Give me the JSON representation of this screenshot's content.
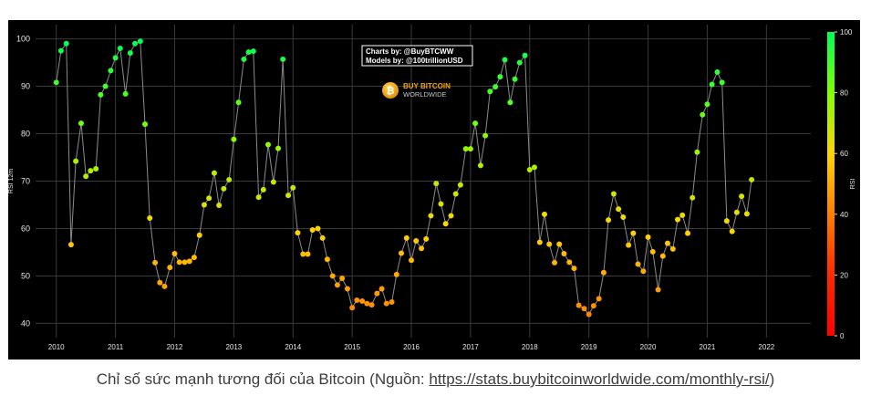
{
  "caption": {
    "text": "Chỉ số sức mạnh tương đối của Bitcoin (Nguồn: ",
    "link": "https://stats.buybitcoinworldwide.com/monthly-rsi/",
    "suffix": ")"
  },
  "credits": {
    "line1": "Charts by: @BuyBTCWW",
    "line2": "Models by: @100trillionUSD"
  },
  "logo": {
    "line1": "BUY BITCOIN",
    "line2": "WORLDWIDE",
    "glyph": "₿"
  },
  "chart_data": {
    "type": "line",
    "ylabel": "RSI 12m",
    "ylim": [
      37,
      103
    ],
    "xlim": [
      2009.65,
      2022.75
    ],
    "yticks": [
      40,
      50,
      60,
      70,
      80,
      90,
      100
    ],
    "xticks": [
      2010,
      2011,
      2012,
      2013,
      2014,
      2015,
      2016,
      2017,
      2018,
      2019,
      2020,
      2021,
      2022
    ],
    "colorbar": {
      "label": "RSI",
      "range": [
        0,
        100
      ],
      "ticks": [
        0,
        20,
        40,
        60,
        80,
        100
      ]
    },
    "grid": true,
    "legend": "none",
    "series": [
      {
        "x": [
          2010.0,
          2010.08,
          2010.17,
          2010.25,
          2010.33,
          2010.42,
          2010.5,
          2010.58,
          2010.67,
          2010.75,
          2010.83,
          2010.92,
          2011.0,
          2011.08,
          2011.17,
          2011.25,
          2011.33,
          2011.42,
          2011.5,
          2011.58,
          2011.67,
          2011.75,
          2011.83,
          2011.92,
          2012.0,
          2012.08,
          2012.17,
          2012.25,
          2012.33,
          2012.42,
          2012.5,
          2012.58,
          2012.67,
          2012.75,
          2012.83,
          2012.92,
          2013.0,
          2013.08,
          2013.17,
          2013.25,
          2013.33,
          2013.42,
          2013.5,
          2013.58,
          2013.67,
          2013.75,
          2013.83,
          2013.92,
          2014.0,
          2014.08,
          2014.17,
          2014.25,
          2014.33,
          2014.42,
          2014.5,
          2014.58,
          2014.67,
          2014.75,
          2014.83,
          2014.92,
          2015.0,
          2015.08,
          2015.17,
          2015.25,
          2015.33,
          2015.42,
          2015.5,
          2015.58,
          2015.67,
          2015.75,
          2015.83,
          2015.92,
          2016.0,
          2016.08,
          2016.17,
          2016.25,
          2016.33,
          2016.42,
          2016.5,
          2016.58,
          2016.67,
          2016.75,
          2016.83,
          2016.92,
          2017.0,
          2017.08,
          2017.17,
          2017.25,
          2017.33,
          2017.42,
          2017.5,
          2017.58,
          2017.67,
          2017.75,
          2017.83,
          2017.92,
          2018.0,
          2018.08,
          2018.17,
          2018.25,
          2018.33,
          2018.42,
          2018.5,
          2018.58,
          2018.67,
          2018.75,
          2018.83,
          2018.92,
          2019.0,
          2019.08,
          2019.17,
          2019.25,
          2019.33,
          2019.42,
          2019.5,
          2019.58,
          2019.67,
          2019.75,
          2019.83,
          2019.92,
          2020.0,
          2020.08,
          2020.17,
          2020.25,
          2020.33,
          2020.42,
          2020.5,
          2020.58,
          2020.67,
          2020.75,
          2020.83,
          2020.92,
          2021.0,
          2021.08,
          2021.17,
          2021.25,
          2021.33,
          2021.42,
          2021.5,
          2021.58,
          2021.67,
          2021.75
        ],
        "y": [
          90.8,
          97.5,
          99.0,
          56.6,
          74.2,
          82.2,
          71.0,
          72.2,
          72.6,
          88.2,
          90.0,
          93.3,
          96.0,
          98.0,
          88.4,
          97.0,
          99.0,
          99.5,
          82.0,
          62.2,
          52.8,
          48.6,
          47.8,
          51.8,
          54.7,
          52.9,
          52.9,
          53.1,
          53.9,
          58.6,
          65.0,
          66.4,
          71.7,
          64.9,
          68.4,
          70.3,
          78.8,
          86.6,
          95.7,
          97.2,
          97.4,
          66.6,
          68.2,
          77.7,
          69.8,
          76.9,
          95.7,
          67.0,
          68.6,
          59.1,
          54.6,
          54.6,
          59.7,
          60.0,
          58.0,
          53.5,
          50.0,
          48.1,
          49.5,
          47.3,
          43.3,
          44.9,
          44.7,
          44.2,
          43.9,
          46.3,
          47.3,
          44.2,
          44.5,
          50.3,
          54.8,
          58.0,
          53.3,
          57.4,
          55.8,
          57.8,
          62.7,
          69.5,
          65.2,
          61.0,
          62.7,
          67.3,
          69.2,
          76.8,
          76.8,
          82.2,
          73.3,
          79.6,
          88.9,
          89.9,
          92.0,
          95.6,
          86.6,
          91.5,
          95.0,
          96.5,
          72.4,
          72.9,
          57.1,
          63.0,
          56.7,
          52.8,
          56.7,
          54.7,
          52.9,
          51.6,
          43.8,
          43.1,
          41.9,
          43.7,
          45.2,
          50.7,
          61.8,
          67.3,
          64.1,
          62.4,
          56.5,
          59.0,
          52.5,
          51.0,
          58.2,
          55.1,
          47.1,
          54.2,
          56.9,
          55.7,
          61.9,
          62.8,
          59.0,
          66.5,
          76.1,
          84.0,
          86.2,
          90.4,
          93.0,
          90.8,
          61.6,
          59.4,
          63.4,
          66.8,
          63.1,
          70.3
        ]
      }
    ]
  }
}
